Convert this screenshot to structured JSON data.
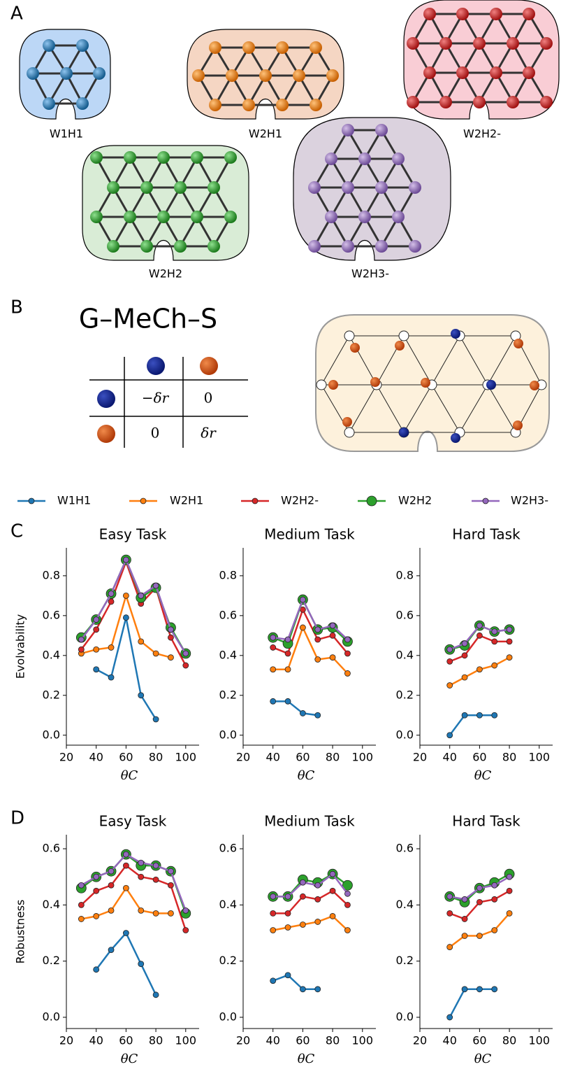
{
  "panel_labels": [
    "A",
    "B",
    "C",
    "D"
  ],
  "panel_a": {
    "networks": [
      "W1H1",
      "W2H1",
      "W2H2-",
      "W2H2",
      "W2H3-"
    ]
  },
  "panel_b": {
    "title": "G–MeCh–S",
    "table": {
      "rows": [
        [
          "−δr",
          "0"
        ],
        [
          "0",
          "δr"
        ]
      ]
    }
  },
  "chart_data": [
    {
      "type": "line",
      "title": "Easy Task",
      "ylabel": "Evolvability",
      "xlabel": "θC",
      "x": [
        30,
        40,
        50,
        60,
        70,
        80,
        90,
        100
      ],
      "xlim": [
        20,
        109
      ],
      "xticks": [
        20,
        40,
        60,
        80,
        100
      ],
      "ylim": [
        -0.05,
        0.94
      ],
      "yticks": [
        {
          "value": 0,
          "label": "0.0"
        },
        0.2,
        0.4,
        0.6,
        0.8
      ],
      "series": [
        {
          "name": "W1H1",
          "color": "#1f77b4",
          "values": [
            null,
            0.33,
            0.29,
            0.59,
            0.2,
            0.08,
            null,
            null
          ]
        },
        {
          "name": "W2H1",
          "color": "#ff7f0e",
          "values": [
            0.41,
            0.43,
            0.44,
            0.7,
            0.47,
            0.41,
            0.39,
            null
          ]
        },
        {
          "name": "W2H2-",
          "color": "#d62728",
          "values": [
            0.43,
            0.53,
            0.67,
            0.87,
            0.66,
            0.74,
            0.49,
            0.35
          ]
        },
        {
          "name": "W2H2",
          "color": "#2ca02c",
          "values": [
            0.49,
            0.58,
            0.71,
            0.88,
            0.69,
            0.74,
            0.54,
            0.41
          ]
        },
        {
          "name": "W2H3-",
          "color": "#9467bd",
          "values": [
            0.48,
            0.58,
            0.71,
            0.88,
            0.7,
            0.75,
            0.53,
            0.41
          ]
        }
      ]
    },
    {
      "type": "line",
      "title": "Medium Task",
      "xlabel": "θC",
      "x": [
        30,
        40,
        50,
        60,
        70,
        80,
        90,
        100
      ],
      "xlim": [
        20,
        109
      ],
      "xticks": [
        20,
        40,
        60,
        80,
        100
      ],
      "ylim": [
        -0.05,
        0.94
      ],
      "yticks": [
        {
          "value": 0,
          "label": "0.0"
        },
        0.2,
        0.4,
        0.6,
        0.8
      ],
      "series": [
        {
          "name": "W1H1",
          "color": "#1f77b4",
          "values": [
            null,
            0.17,
            0.17,
            0.11,
            0.1,
            null,
            null,
            null
          ]
        },
        {
          "name": "W2H1",
          "color": "#ff7f0e",
          "values": [
            null,
            0.33,
            0.33,
            0.54,
            0.38,
            0.39,
            0.31,
            null
          ]
        },
        {
          "name": "W2H2-",
          "color": "#d62728",
          "values": [
            null,
            0.44,
            0.41,
            0.63,
            0.48,
            0.5,
            0.41,
            null
          ]
        },
        {
          "name": "W2H2",
          "color": "#2ca02c",
          "values": [
            null,
            0.49,
            0.46,
            0.68,
            0.53,
            0.54,
            0.47,
            null
          ]
        },
        {
          "name": "W2H3-",
          "color": "#9467bd",
          "values": [
            null,
            0.49,
            0.48,
            0.68,
            0.53,
            0.55,
            0.48,
            null
          ]
        }
      ]
    },
    {
      "type": "line",
      "title": "Hard Task",
      "xlabel": "θC",
      "x": [
        30,
        40,
        50,
        60,
        70,
        80,
        90,
        100
      ],
      "xlim": [
        20,
        109
      ],
      "xticks": [
        20,
        40,
        60,
        80,
        100
      ],
      "ylim": [
        -0.05,
        0.94
      ],
      "yticks": [
        {
          "value": 0,
          "label": "0.0"
        },
        0.2,
        0.4,
        0.6,
        0.8
      ],
      "series": [
        {
          "name": "W1H1",
          "color": "#1f77b4",
          "values": [
            null,
            0.0,
            0.1,
            0.1,
            0.1,
            null,
            null,
            null
          ]
        },
        {
          "name": "W2H1",
          "color": "#ff7f0e",
          "values": [
            null,
            0.25,
            0.29,
            0.33,
            0.35,
            0.39,
            null,
            null
          ]
        },
        {
          "name": "W2H2-",
          "color": "#d62728",
          "values": [
            null,
            0.37,
            0.4,
            0.5,
            0.47,
            0.47,
            null,
            null
          ]
        },
        {
          "name": "W2H2",
          "color": "#2ca02c",
          "values": [
            null,
            0.43,
            0.45,
            0.55,
            0.52,
            0.53,
            null,
            null
          ]
        },
        {
          "name": "W2H3-",
          "color": "#9467bd",
          "values": [
            null,
            0.43,
            0.46,
            0.55,
            0.52,
            0.53,
            null,
            null
          ]
        }
      ]
    },
    {
      "type": "line",
      "title": "Easy Task",
      "ylabel": "Robustness",
      "xlabel": "θC",
      "x": [
        30,
        40,
        50,
        60,
        70,
        80,
        90,
        100
      ],
      "xlim": [
        20,
        109
      ],
      "xticks": [
        20,
        40,
        60,
        80,
        100
      ],
      "ylim": [
        -0.04,
        0.65
      ],
      "yticks": [
        {
          "value": 0,
          "label": "0.0"
        },
        0.2,
        0.4,
        0.6
      ],
      "series": [
        {
          "name": "W1H1",
          "color": "#1f77b4",
          "values": [
            null,
            0.17,
            0.24,
            0.3,
            0.19,
            0.08,
            null,
            null
          ]
        },
        {
          "name": "W2H1",
          "color": "#ff7f0e",
          "values": [
            0.35,
            0.36,
            0.38,
            0.46,
            0.38,
            0.37,
            0.37,
            null
          ]
        },
        {
          "name": "W2H2-",
          "color": "#d62728",
          "values": [
            0.4,
            0.45,
            0.47,
            0.54,
            0.5,
            0.49,
            0.47,
            0.31
          ]
        },
        {
          "name": "W2H2",
          "color": "#2ca02c",
          "values": [
            0.46,
            0.5,
            0.52,
            0.58,
            0.54,
            0.54,
            0.52,
            0.37
          ]
        },
        {
          "name": "W2H3-",
          "color": "#9467bd",
          "values": [
            0.47,
            0.5,
            0.52,
            0.58,
            0.55,
            0.54,
            0.52,
            0.38
          ]
        }
      ]
    },
    {
      "type": "line",
      "title": "Medium Task",
      "xlabel": "θC",
      "x": [
        30,
        40,
        50,
        60,
        70,
        80,
        90,
        100
      ],
      "xlim": [
        20,
        109
      ],
      "xticks": [
        20,
        40,
        60,
        80,
        100
      ],
      "ylim": [
        -0.04,
        0.65
      ],
      "yticks": [
        {
          "value": 0,
          "label": "0.0"
        },
        0.2,
        0.4,
        0.6
      ],
      "series": [
        {
          "name": "W1H1",
          "color": "#1f77b4",
          "values": [
            null,
            0.13,
            0.15,
            0.1,
            0.1,
            null,
            null,
            null
          ]
        },
        {
          "name": "W2H1",
          "color": "#ff7f0e",
          "values": [
            null,
            0.31,
            0.32,
            0.33,
            0.34,
            0.36,
            0.31,
            null
          ]
        },
        {
          "name": "W2H2-",
          "color": "#d62728",
          "values": [
            null,
            0.37,
            0.37,
            0.43,
            0.42,
            0.45,
            0.4,
            null
          ]
        },
        {
          "name": "W2H2",
          "color": "#2ca02c",
          "values": [
            null,
            0.43,
            0.43,
            0.49,
            0.48,
            0.51,
            0.47,
            null
          ]
        },
        {
          "name": "W2H3-",
          "color": "#9467bd",
          "values": [
            null,
            0.43,
            0.43,
            0.48,
            0.47,
            0.51,
            0.44,
            null
          ]
        }
      ]
    },
    {
      "type": "line",
      "title": "Hard Task",
      "xlabel": "θC",
      "x": [
        30,
        40,
        50,
        60,
        70,
        80,
        90,
        100
      ],
      "xlim": [
        20,
        109
      ],
      "xticks": [
        20,
        40,
        60,
        80,
        100
      ],
      "ylim": [
        -0.04,
        0.65
      ],
      "yticks": [
        {
          "value": 0,
          "label": "0.0"
        },
        0.2,
        0.4,
        0.6
      ],
      "series": [
        {
          "name": "W1H1",
          "color": "#1f77b4",
          "values": [
            null,
            0.0,
            0.1,
            0.1,
            0.1,
            null,
            null,
            null
          ]
        },
        {
          "name": "W2H1",
          "color": "#ff7f0e",
          "values": [
            null,
            0.25,
            0.29,
            0.29,
            0.31,
            0.37,
            null,
            null
          ]
        },
        {
          "name": "W2H2-",
          "color": "#d62728",
          "values": [
            null,
            0.37,
            0.35,
            0.41,
            0.42,
            0.45,
            null,
            null
          ]
        },
        {
          "name": "W2H2",
          "color": "#2ca02c",
          "values": [
            null,
            0.43,
            0.41,
            0.46,
            0.48,
            0.51,
            null,
            null
          ]
        },
        {
          "name": "W2H3-",
          "color": "#9467bd",
          "values": [
            null,
            0.43,
            0.42,
            0.46,
            0.47,
            0.5,
            null,
            null
          ]
        }
      ]
    }
  ]
}
